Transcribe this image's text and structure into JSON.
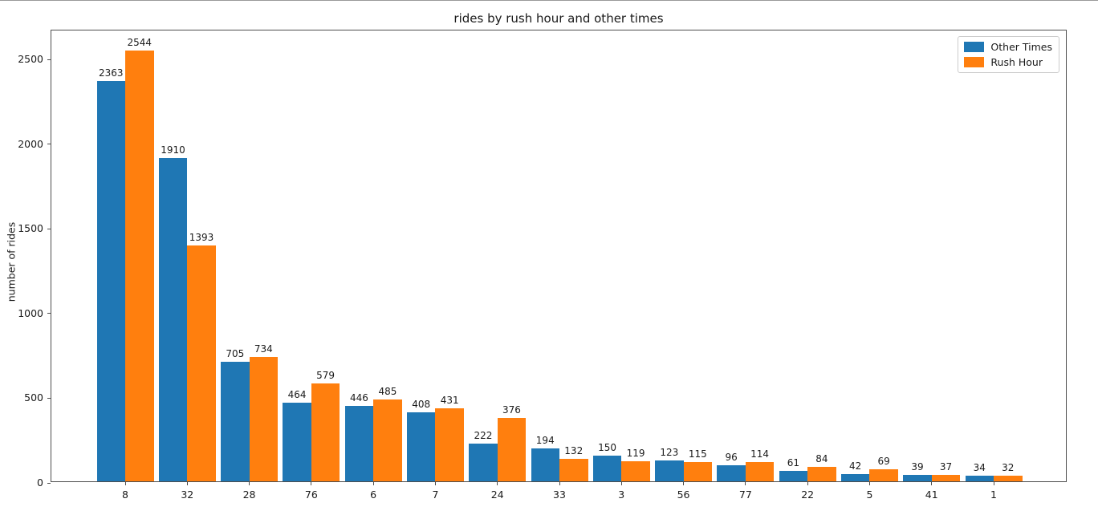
{
  "chart_data": {
    "type": "bar",
    "title": "rides by rush hour and other times",
    "xlabel": "",
    "ylabel": "number of rides",
    "categories": [
      "8",
      "32",
      "28",
      "76",
      "6",
      "7",
      "24",
      "33",
      "3",
      "56",
      "77",
      "22",
      "5",
      "41",
      "1"
    ],
    "series": [
      {
        "name": "Other Times",
        "color": "#1f77b4",
        "values": [
          2363,
          1910,
          705,
          464,
          446,
          408,
          222,
          194,
          150,
          123,
          96,
          61,
          42,
          39,
          34
        ]
      },
      {
        "name": "Rush Hour",
        "color": "#ff7f0e",
        "values": [
          2544,
          1393,
          734,
          579,
          485,
          431,
          376,
          132,
          119,
          115,
          114,
          84,
          69,
          37,
          32
        ]
      }
    ],
    "yticks": [
      0,
      500,
      1000,
      1500,
      2000,
      2500
    ],
    "ylim": [
      0,
      2671
    ],
    "grid": false,
    "bar_value_labels": true,
    "legend_position": "upper right",
    "colors": {
      "spine": "#4d4d4d",
      "background": "#ffffff",
      "text": "#1a1a1a",
      "legend_border": "#cccccc"
    }
  }
}
